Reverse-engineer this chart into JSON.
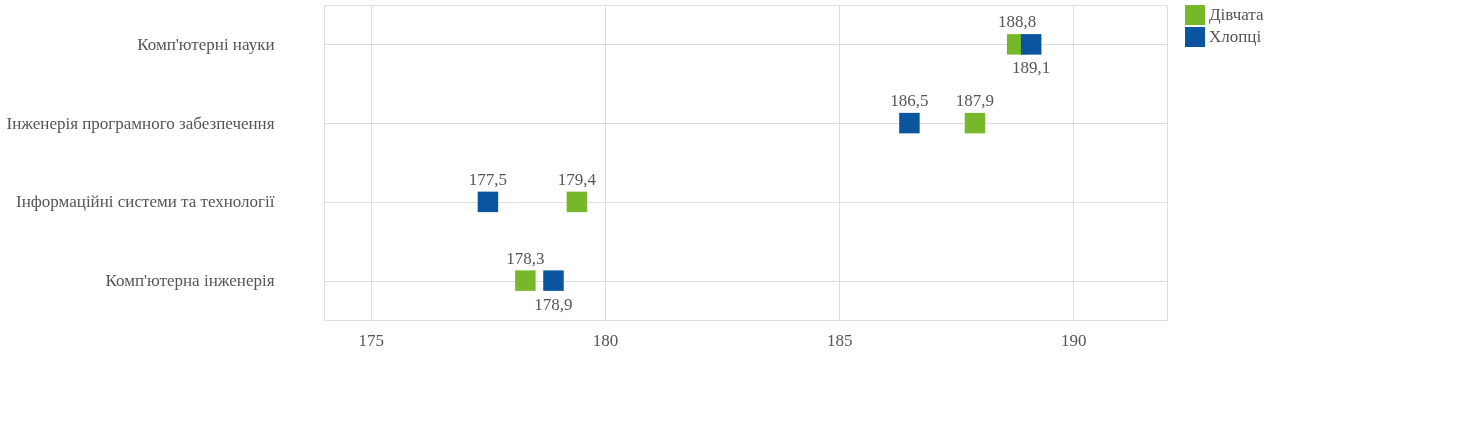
{
  "chart_data": {
    "type": "scatter",
    "orientation": "horizontal",
    "categories": [
      "Комп'ютерні науки",
      "Інженерія програмного забезпечення",
      "Інформаційні системи та технології",
      "Комп'ютерна інженерія"
    ],
    "series": [
      {
        "name": "Дівчата",
        "color": "#77b82a",
        "values": [
          188.8,
          187.9,
          179.4,
          178.3
        ],
        "value_labels": [
          "188,8",
          "187,9",
          "179,4",
          "178,3"
        ]
      },
      {
        "name": "Хлопці",
        "color": "#0a54a0",
        "values": [
          189.1,
          186.5,
          177.5,
          178.9
        ],
        "value_labels": [
          "189,1",
          "186,5",
          "177,5",
          "178,9"
        ]
      }
    ],
    "xlim": [
      174,
      192
    ],
    "xticks": [
      175,
      180,
      185,
      190
    ],
    "grid": true,
    "legend": "right",
    "marker": "square"
  }
}
